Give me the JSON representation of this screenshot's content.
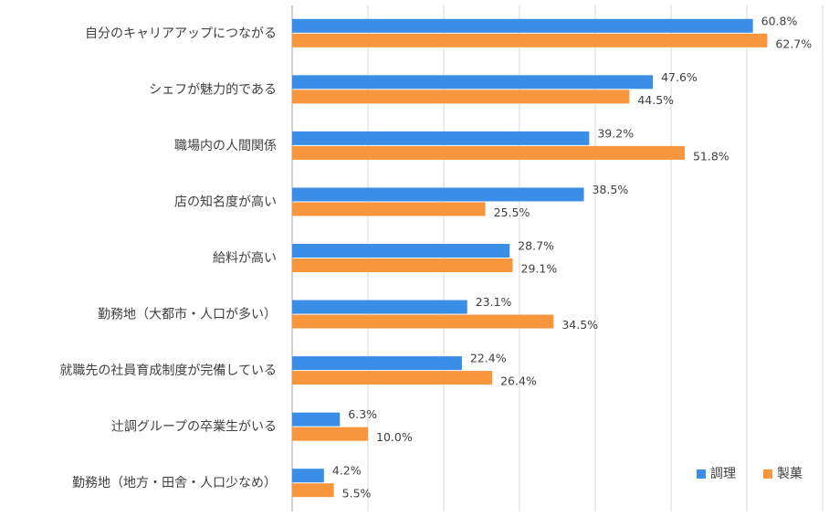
{
  "chart_data": {
    "type": "bar",
    "orientation": "horizontal",
    "categories": [
      "自分のキャリアアップにつながる",
      "シェフが魅力的である",
      "職場内の人間関係",
      "店の知名度が高い",
      "給料が高い",
      "勤務地（大都市・人口が多い）",
      "就職先の社員育成制度が完備している",
      "辻調グループの卒業生がいる",
      "勤務地（地方・田舎・人口少なめ）"
    ],
    "series": [
      {
        "name": "調理",
        "color": "#3b8ee5",
        "values": [
          60.8,
          47.6,
          39.2,
          38.5,
          28.7,
          23.1,
          22.4,
          6.3,
          4.2
        ],
        "value_labels": [
          "60.8%",
          "47.6%",
          "39.2%",
          "38.5%",
          "28.7%",
          "23.1%",
          "22.4%",
          "6.3%",
          "4.2%"
        ]
      },
      {
        "name": "製菓",
        "color": "#f7963c",
        "values": [
          62.7,
          44.5,
          51.8,
          25.5,
          29.1,
          34.5,
          26.4,
          10,
          5.5
        ],
        "value_labels": [
          "62.7%",
          "44.5%",
          "51.8%",
          "25.5%",
          "29.1%",
          "34.5%",
          "26.4%",
          "10.0%",
          "5.5%"
        ]
      }
    ],
    "xlim": [
      0,
      70
    ],
    "xticks": [
      0,
      10,
      20,
      30,
      40,
      50,
      60,
      70
    ],
    "grid": true,
    "legend": "lower right"
  }
}
